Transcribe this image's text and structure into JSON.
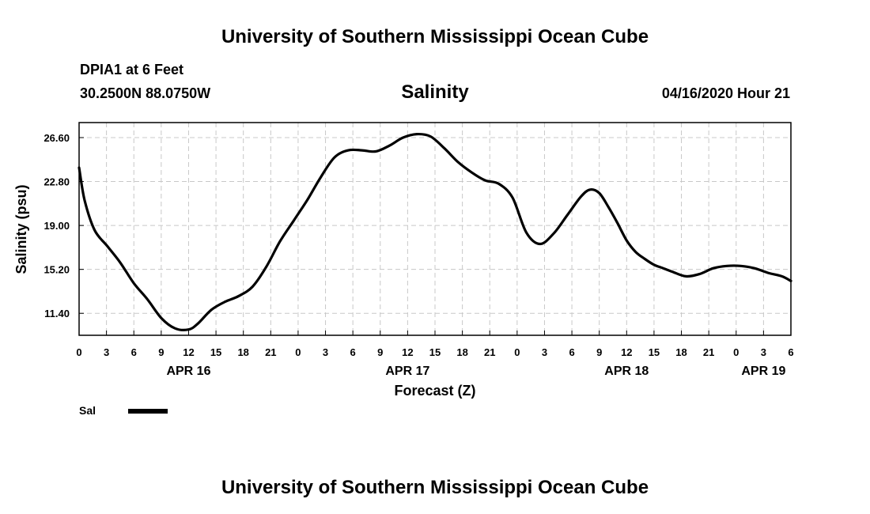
{
  "header": {
    "title": "University of Southern Mississippi Ocean Cube",
    "station": "DPIA1 at 6 Feet",
    "coords": "30.2500N 88.0750W",
    "variable": "Salinity",
    "datetime": "04/16/2020 Hour 21"
  },
  "footer": {
    "title": "University of Southern Mississippi Ocean Cube"
  },
  "legend": {
    "label": "Sal",
    "color": "#000000"
  },
  "chart_data": {
    "type": "line",
    "title": "Salinity",
    "xlabel": "Forecast (Z)",
    "ylabel": "Salinity (psu)",
    "xlim": [
      0,
      78
    ],
    "ylim": [
      9.5,
      27.9
    ],
    "grid": true,
    "y_ticks": [
      26.6,
      22.8,
      19.0,
      15.2,
      11.4
    ],
    "y_tick_labels": [
      "26.60",
      "22.80",
      "19.00",
      "15.20",
      "11.40"
    ],
    "x_ticks": [
      0,
      3,
      6,
      9,
      12,
      15,
      18,
      21,
      24,
      27,
      30,
      33,
      36,
      39,
      42,
      45,
      48,
      51,
      54,
      57,
      60,
      63,
      66,
      69,
      72,
      75,
      78
    ],
    "x_tick_labels": [
      "0",
      "3",
      "6",
      "9",
      "12",
      "15",
      "18",
      "21",
      "0",
      "3",
      "6",
      "9",
      "12",
      "15",
      "18",
      "21",
      "0",
      "3",
      "6",
      "9",
      "12",
      "15",
      "18",
      "21",
      "0",
      "3",
      "6"
    ],
    "day_labels": [
      {
        "label": "APR 16",
        "hour": 12
      },
      {
        "label": "APR 17",
        "hour": 36
      },
      {
        "label": "APR 18",
        "hour": 60
      },
      {
        "label": "APR 19",
        "hour": 75
      }
    ],
    "series": [
      {
        "name": "Sal",
        "x": [
          0,
          0.6,
          1.7,
          3.1,
          4.5,
          6,
          7.5,
          9,
          10.5,
          12,
          13,
          14.5,
          16,
          17.5,
          19,
          20.5,
          22,
          23.5,
          25,
          26.5,
          28,
          29.5,
          31,
          32.5,
          34,
          35.5,
          37,
          38.5,
          40,
          41.5,
          43,
          44.5,
          46,
          47.5,
          49,
          50.5,
          52,
          53.5,
          55,
          56,
          57,
          58,
          59,
          60,
          61,
          62,
          63,
          64,
          65,
          66.5,
          68,
          69.5,
          71,
          72.5,
          74,
          75.5,
          77,
          78
        ],
        "values": [
          24.0,
          21.2,
          18.6,
          17.2,
          15.8,
          14.0,
          12.6,
          11.0,
          10.1,
          10.0,
          10.5,
          11.7,
          12.4,
          12.9,
          13.7,
          15.4,
          17.6,
          19.4,
          21.2,
          23.2,
          24.9,
          25.5,
          25.5,
          25.4,
          25.9,
          26.6,
          26.9,
          26.7,
          25.7,
          24.5,
          23.6,
          22.9,
          22.6,
          21.4,
          18.4,
          17.4,
          18.3,
          19.9,
          21.5,
          22.1,
          21.8,
          20.6,
          19.2,
          17.7,
          16.7,
          16.1,
          15.6,
          15.3,
          15.0,
          14.6,
          14.8,
          15.3,
          15.5,
          15.5,
          15.3,
          14.9,
          14.6,
          14.2
        ]
      }
    ]
  }
}
